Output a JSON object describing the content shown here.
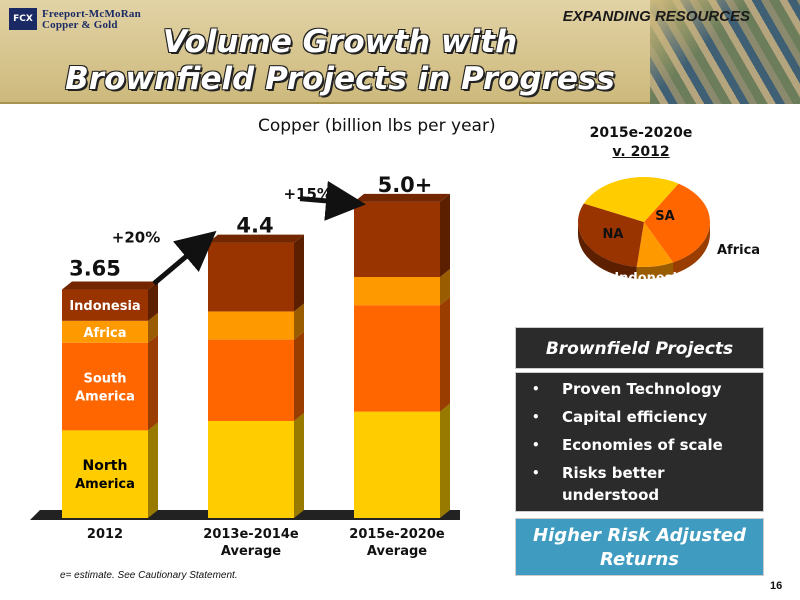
{
  "header": {
    "logo_mark": "FCX",
    "logo_line1": "Freeport-McMoRan",
    "logo_line2": "Copper & Gold",
    "tagline": "EXPANDING RESOURCES",
    "title_line1": "Volume Growth with",
    "title_line2": "Brownfield Projects in Progress",
    "colors": {
      "band": "#cdb97c",
      "logo": "#1b2a64",
      "title_text": "#ffffff"
    }
  },
  "chart_data": [
    {
      "type": "bar",
      "stacked": true,
      "title": "Copper (billion lbs per year)",
      "categories": [
        "2012",
        "2013e-2014e Average",
        "2015e-2020e Average"
      ],
      "category_lines": [
        [
          "2012"
        ],
        [
          "2013e-2014e",
          "Average"
        ],
        [
          "2015e-2020e",
          "Average"
        ]
      ],
      "totals": [
        3.65,
        4.4,
        5.0
      ],
      "total_labels": [
        "3.65",
        "4.4",
        "5.0+"
      ],
      "series": [
        {
          "name": "North America",
          "label_lines": [
            "North",
            "America"
          ],
          "color": "#ffcc00",
          "values": [
            1.4,
            1.55,
            1.7
          ]
        },
        {
          "name": "South America",
          "label_lines": [
            "South",
            "America"
          ],
          "color": "#ff6600",
          "values": [
            1.4,
            1.3,
            1.7
          ]
        },
        {
          "name": "Africa",
          "label_lines": [
            "Africa"
          ],
          "color": "#ff9900",
          "values": [
            0.35,
            0.45,
            0.45
          ]
        },
        {
          "name": "Indonesia",
          "label_lines": [
            "Indonesia"
          ],
          "color": "#993300",
          "values": [
            0.5,
            1.1,
            1.2
          ]
        }
      ],
      "growth_arrows": [
        {
          "from": 0,
          "to": 1,
          "label": "+20%"
        },
        {
          "from": 1,
          "to": 2,
          "label": "+15%+"
        }
      ],
      "ylim": [
        0,
        5.4
      ],
      "grid": false
    },
    {
      "type": "pie",
      "title_line1": "2015e-2020e",
      "title_line2": "v. 2012",
      "slices": [
        {
          "label": "SA",
          "value": 34,
          "color": "#ff6600"
        },
        {
          "label": "Africa",
          "value": 9,
          "color": "#ff9900"
        },
        {
          "label": "Indonesia",
          "value": 30,
          "color": "#993300"
        },
        {
          "label": "NA",
          "value": 27,
          "color": "#ffcc00"
        }
      ]
    }
  ],
  "footnote": "e= estimate. See Cautionary Statement.",
  "brownfield": {
    "heading": "Brownfield Projects",
    "items": [
      "Proven Technology",
      "Capital efficiency",
      "Economies of scale",
      "Risks better understood"
    ]
  },
  "callout": "Higher Risk Adjusted Returns",
  "page_number": "16"
}
